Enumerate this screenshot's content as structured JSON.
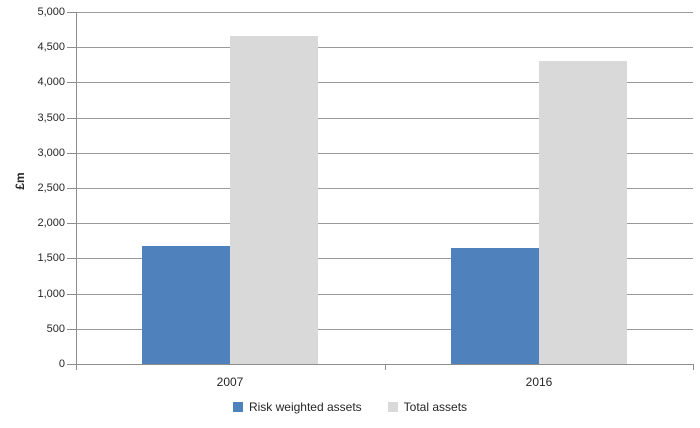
{
  "chart_data": {
    "type": "bar",
    "categories": [
      "2007",
      "2016"
    ],
    "series": [
      {
        "name": "Risk weighted assets",
        "color": "#4f81bd",
        "values": [
          1680,
          1650
        ]
      },
      {
        "name": "Total assets",
        "color": "#d9d9d9",
        "values": [
          4660,
          4310
        ]
      }
    ],
    "title": "",
    "xlabel": "",
    "ylabel": "£m",
    "ylim": [
      0,
      5000
    ],
    "ytick_step": 500,
    "yticks": [
      "0",
      "500",
      "1,000",
      "1,500",
      "2,000",
      "2,500",
      "3,000",
      "3,500",
      "4,000",
      "4,500",
      "5,000"
    ],
    "grid": true,
    "legend_position": "bottom"
  },
  "colors": {
    "gridline": "#9a9a9a",
    "axis": "#8c8c8c",
    "text": "#262626",
    "background": "#ffffff"
  }
}
